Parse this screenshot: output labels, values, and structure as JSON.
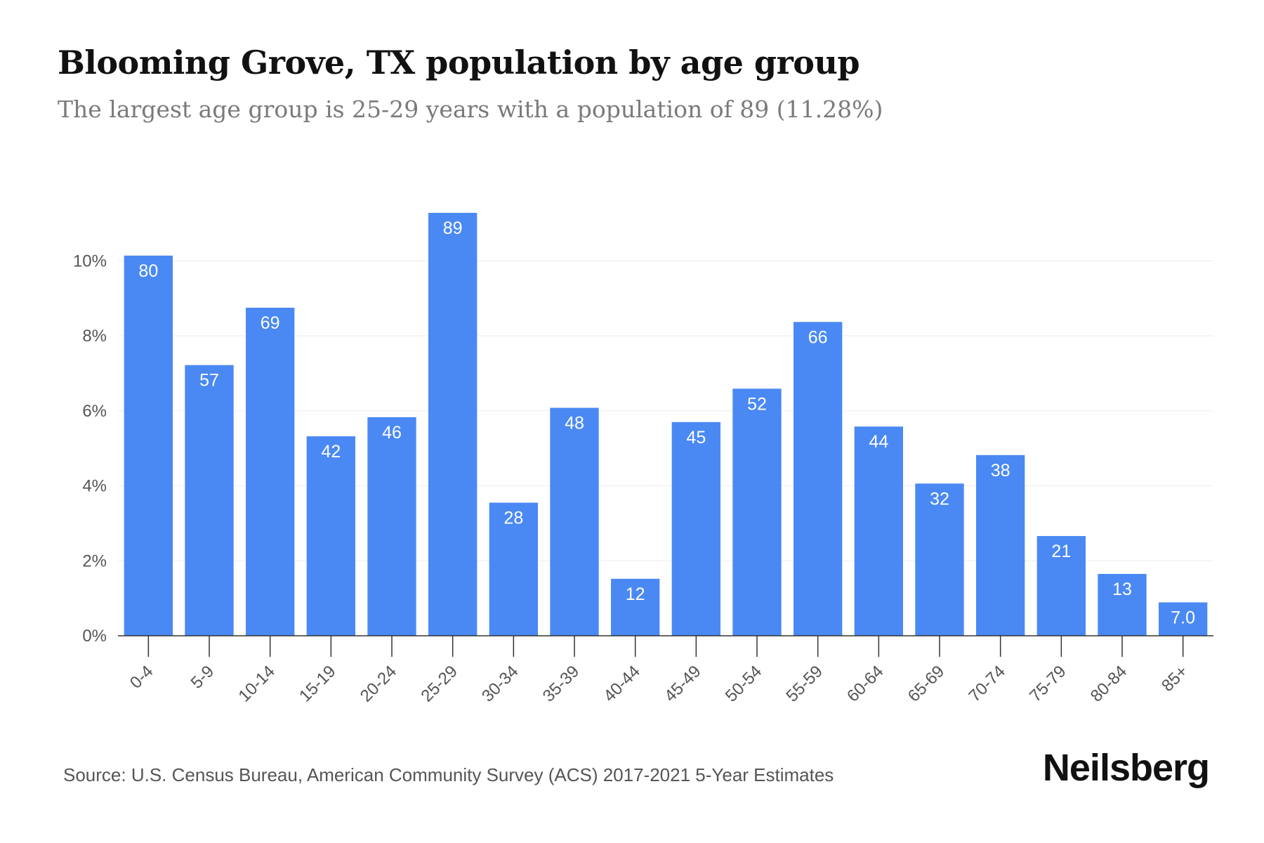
{
  "header": {
    "title": "Blooming Grove, TX population by age group",
    "subtitle": "The largest age group is 25-29 years with a population of 89 (11.28%)"
  },
  "footer": {
    "source": "Source: U.S. Census Bureau, American Community Survey (ACS) 2017-2021 5-Year Estimates",
    "brand": "Neilsberg"
  },
  "colors": {
    "bar": "#4a89f3",
    "bar_label": "#ffffff",
    "grid": "#eeeeee",
    "axis": "#333333",
    "tick_text": "#555555"
  },
  "chart_data": {
    "type": "bar",
    "categories": [
      "0-4",
      "5-9",
      "10-14",
      "15-19",
      "20-24",
      "25-29",
      "30-34",
      "35-39",
      "40-44",
      "45-49",
      "50-54",
      "55-59",
      "60-64",
      "65-69",
      "70-74",
      "75-79",
      "80-84",
      "85+"
    ],
    "values": [
      10.14,
      7.22,
      8.75,
      5.32,
      5.83,
      11.28,
      3.55,
      6.08,
      1.52,
      5.7,
      6.59,
      8.37,
      5.58,
      4.06,
      4.82,
      2.66,
      1.65,
      0.89
    ],
    "data_labels": [
      "80",
      "57",
      "69",
      "42",
      "46",
      "89",
      "28",
      "48",
      "12",
      "45",
      "52",
      "66",
      "44",
      "32",
      "38",
      "21",
      "13",
      "7.0"
    ],
    "y_ticks": [
      "0%",
      "2%",
      "4%",
      "6%",
      "8%",
      "10%"
    ],
    "y_tick_values": [
      0,
      2,
      4,
      6,
      8,
      10
    ],
    "ylim": [
      0,
      11.28
    ],
    "xlabel": "",
    "ylabel": "",
    "grid": true,
    "legend": "none"
  }
}
